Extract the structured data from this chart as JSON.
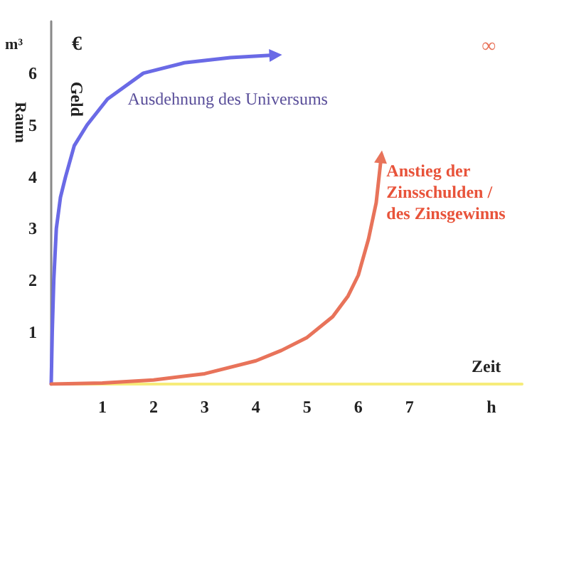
{
  "chart_data": {
    "type": "line",
    "xlabel": "Zeit",
    "ylabel": "Raum",
    "annotations": [
      "m³",
      "€",
      "Geld",
      "∞"
    ],
    "xlim": [
      0,
      9.2
    ],
    "xticks": [
      1,
      2,
      3,
      4,
      5,
      6,
      7,
      {
        "value": 8.6,
        "label": "h"
      }
    ],
    "ylim": [
      0,
      7
    ],
    "yticks": [
      1,
      2,
      3,
      4,
      5,
      6
    ],
    "series": [
      {
        "name": "Ausdehnung des Universums",
        "color": "#6a6ae6",
        "x": [
          0,
          0.02,
          0.05,
          0.1,
          0.18,
          0.28,
          0.45,
          0.7,
          1.1,
          1.8,
          2.6,
          3.5,
          4.4
        ],
        "values": [
          0,
          1,
          2,
          3,
          3.6,
          4,
          4.6,
          5,
          5.5,
          6,
          6.2,
          6.3,
          6.35
        ]
      },
      {
        "name": "Anstieg der Zinsschulden / des Zinsgewinns",
        "color": "#e8735a",
        "x": [
          0,
          1,
          2,
          3,
          4,
          4.5,
          5,
          5.5,
          5.8,
          6,
          6.2,
          6.35,
          6.45
        ],
        "values": [
          0,
          0.02,
          0.08,
          0.2,
          0.45,
          0.65,
          0.9,
          1.3,
          1.7,
          2.1,
          2.8,
          3.5,
          4.4
        ]
      }
    ]
  }
}
